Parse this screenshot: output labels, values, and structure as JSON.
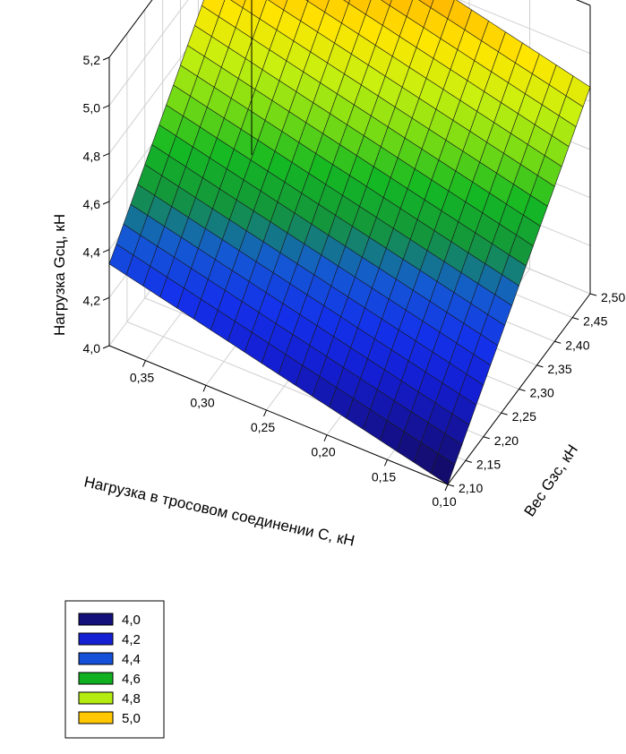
{
  "chart_data": {
    "type": "surface3d",
    "xlabel": "Нагрузка в тросовом соединении C, кН",
    "ylabel": "Вес Gзс, кН",
    "zlabel": "Нагрузка Gсц, кН",
    "x_ticks": [
      "0,35",
      "0,30",
      "0,25",
      "0,20",
      "0,15",
      "0,10"
    ],
    "x_tick_values": [
      0.35,
      0.3,
      0.25,
      0.2,
      0.15,
      0.1
    ],
    "y_ticks": [
      "2,10",
      "2,15",
      "2,20",
      "2,25",
      "2,30",
      "2,35",
      "2,40",
      "2,45",
      "2,50"
    ],
    "y_tick_values": [
      2.1,
      2.15,
      2.2,
      2.25,
      2.3,
      2.35,
      2.4,
      2.45,
      2.5
    ],
    "z_ticks": [
      "4,0",
      "4,2",
      "4,4",
      "4,6",
      "4,8",
      "5,0",
      "5,2"
    ],
    "z_tick_values": [
      4.0,
      4.2,
      4.4,
      4.6,
      4.8,
      5.0,
      5.2
    ],
    "xlim": [
      0.1,
      0.38
    ],
    "ylim": [
      2.1,
      2.5
    ],
    "zlim": [
      4.0,
      5.2
    ],
    "surface_corners": [
      {
        "C": 0.38,
        "G": 2.1,
        "value": 4.34
      },
      {
        "C": 0.1,
        "G": 2.1,
        "value": 4.0
      },
      {
        "C": 0.1,
        "G": 2.5,
        "value": 4.86
      },
      {
        "C": 0.38,
        "G": 2.5,
        "value": 5.2
      }
    ],
    "grid": true,
    "legend": {
      "placement": "bottom-left",
      "entries": [
        {
          "label": "4,0",
          "color": "#14127a"
        },
        {
          "label": "4,2",
          "color": "#1420d2"
        },
        {
          "label": "4,4",
          "color": "#1450d8"
        },
        {
          "label": "4,6",
          "color": "#10b020"
        },
        {
          "label": "4,8",
          "color": "#b4ec10"
        },
        {
          "label": "5,0",
          "color": "#ffc800"
        }
      ]
    }
  }
}
